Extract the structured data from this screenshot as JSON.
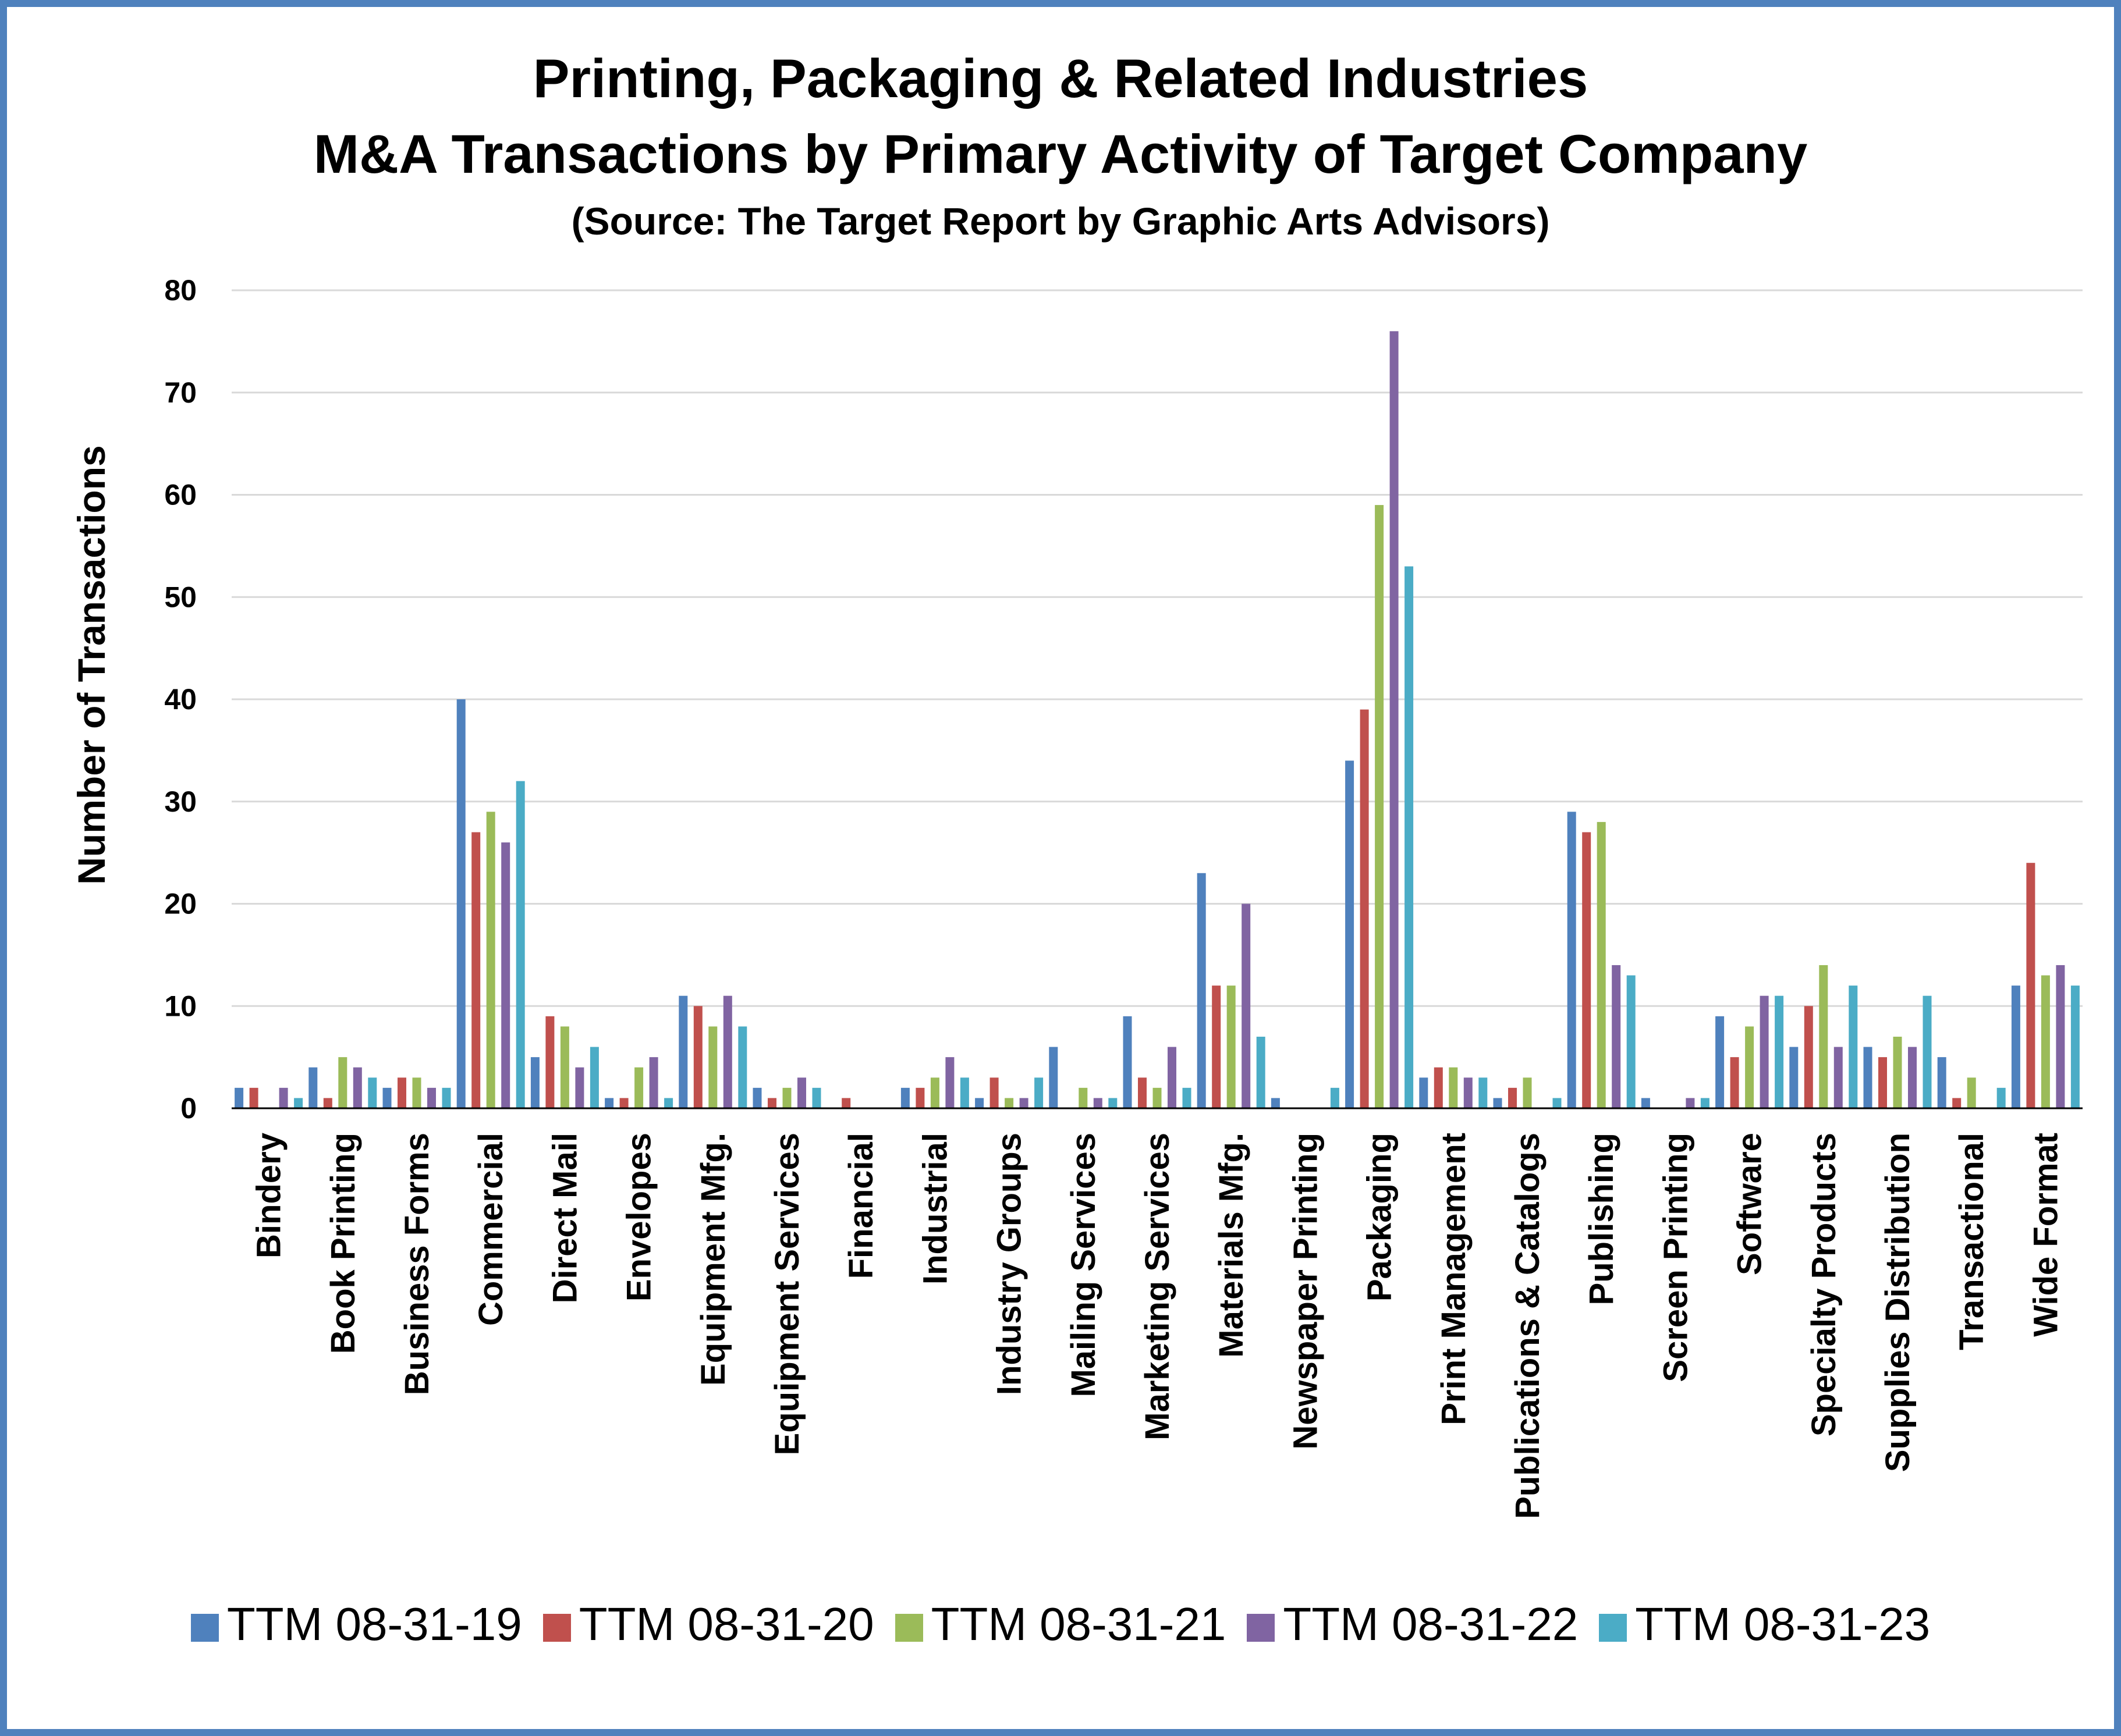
{
  "chart_data": {
    "type": "bar",
    "title": "Printing, Packaging & Related Industries",
    "subtitle": "M&A Transactions by Primary Activity of Target Company",
    "source": "(Source: The Target Report by Graphic Arts Advisors)",
    "xlabel": "",
    "ylabel": "Number of Transactions",
    "ylim": [
      0,
      80
    ],
    "yticks": [
      0,
      10,
      20,
      30,
      40,
      50,
      60,
      70,
      80
    ],
    "grid": true,
    "legend_position": "bottom",
    "categories": [
      "Bindery",
      "Book Printing",
      "Business Forms",
      "Commercial",
      "Direct Mail",
      "Envelopes",
      "Equipment Mfg.",
      "Equipment Services",
      "Financial",
      "Industrial",
      "Industry Groups",
      "Mailing Services",
      "Marketing Services",
      "Materials Mfg.",
      "Newspaper Printing",
      "Packaging",
      "Print Management",
      "Publications & Catalogs",
      "Publishing",
      "Screen Printing",
      "Software",
      "Specialty Products",
      "Supplies Distribution",
      "Transactional",
      "Wide Format"
    ],
    "series": [
      {
        "name": "TTM 08-31-19",
        "color": "#4f81bd",
        "values": [
          2,
          4,
          2,
          40,
          5,
          1,
          11,
          2,
          0,
          2,
          1,
          6,
          9,
          23,
          1,
          34,
          3,
          1,
          29,
          1,
          9,
          6,
          6,
          5,
          12
        ]
      },
      {
        "name": "TTM 08-31-20",
        "color": "#c0504d",
        "values": [
          2,
          1,
          3,
          27,
          9,
          1,
          10,
          1,
          1,
          2,
          3,
          0,
          3,
          12,
          0,
          39,
          4,
          2,
          27,
          0,
          5,
          10,
          5,
          1,
          24
        ]
      },
      {
        "name": "TTM 08-31-21",
        "color": "#9bbb59",
        "values": [
          0,
          5,
          3,
          29,
          8,
          4,
          8,
          2,
          0,
          3,
          1,
          2,
          2,
          12,
          0,
          59,
          4,
          3,
          28,
          0,
          8,
          14,
          7,
          3,
          13
        ]
      },
      {
        "name": "TTM 08-31-22",
        "color": "#8064a2",
        "values": [
          2,
          4,
          2,
          26,
          4,
          5,
          11,
          3,
          0,
          5,
          1,
          1,
          6,
          20,
          0,
          76,
          3,
          0,
          14,
          1,
          11,
          6,
          6,
          0,
          14
        ]
      },
      {
        "name": "TTM 08-31-23",
        "color": "#4bacc6",
        "values": [
          1,
          3,
          2,
          32,
          6,
          1,
          8,
          2,
          0,
          3,
          3,
          1,
          2,
          7,
          2,
          53,
          3,
          1,
          13,
          1,
          11,
          12,
          11,
          2,
          12
        ]
      }
    ]
  }
}
